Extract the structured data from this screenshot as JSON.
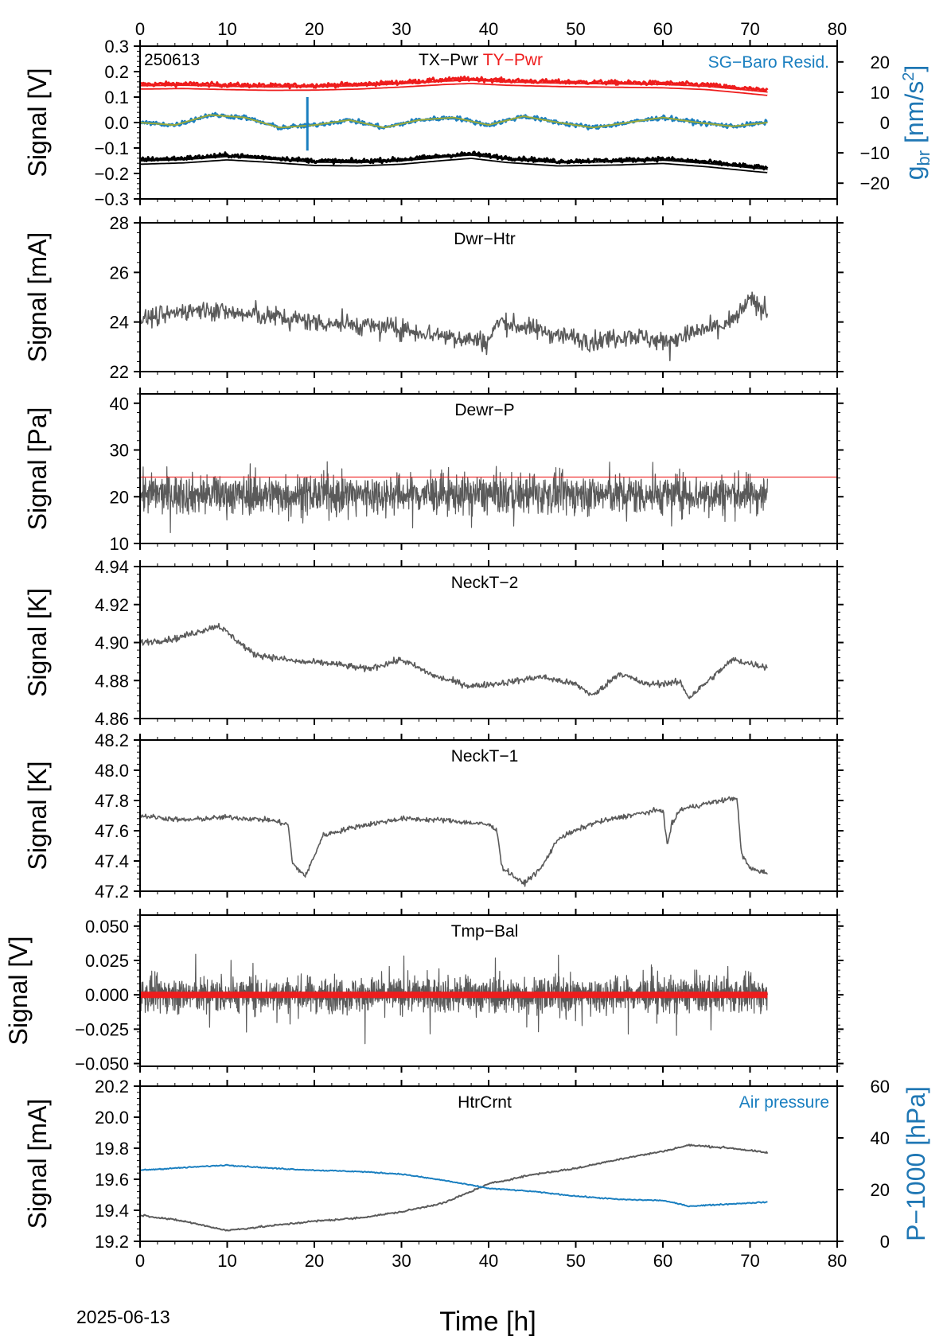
{
  "figure": {
    "date_label": "2025-06-13",
    "xlabel": "Time [h]",
    "x_ticks": [
      0,
      10,
      20,
      30,
      40,
      50,
      60,
      70,
      80
    ],
    "xlim": [
      0,
      80
    ]
  },
  "colors": {
    "trace": "#5a5a5a",
    "red": "#ee1c1c",
    "blue": "#1a7fc0",
    "green": "#9aaa3a",
    "black": "#000000"
  },
  "chart_data": [
    {
      "id": "p1",
      "type": "line",
      "title": "",
      "title_parts": [
        "TX−Pwr",
        "TY−Pwr"
      ],
      "corner_label": "250613",
      "right_annotation": "SG−Baro Resid.",
      "ylabel": "Signal [V]",
      "ylim": [
        -0.3,
        0.3
      ],
      "y_ticks": [
        0.3,
        0.2,
        0.1,
        0.0,
        -0.1,
        -0.2,
        -0.3
      ],
      "y_tick_labels": [
        "0.3",
        "0.2",
        "0.1",
        "0.0",
        "−0.1",
        "−0.2",
        "−0.3"
      ],
      "y2label": "g_br [nm/s²]",
      "y2label_parts": {
        "main": "g",
        "sub": "br",
        "rest": " [nm/s",
        "sup": "2",
        "close": "]"
      },
      "y2lim": [
        -25.2,
        25.2
      ],
      "y2_ticks": [
        20,
        10,
        0,
        -10,
        -20
      ],
      "y2_tick_labels": [
        "20",
        "10",
        "0",
        "−10",
        "−20"
      ],
      "series": [
        {
          "name": "TY−Pwr",
          "color": "red",
          "x": [
            0,
            5,
            10,
            15,
            20,
            25,
            30,
            35,
            38,
            42,
            48,
            55,
            60,
            65,
            70,
            72
          ],
          "y": [
            0.15,
            0.152,
            0.148,
            0.145,
            0.146,
            0.15,
            0.158,
            0.168,
            0.172,
            0.165,
            0.16,
            0.157,
            0.155,
            0.148,
            0.132,
            0.125
          ]
        },
        {
          "name": "TX−Pwr",
          "color": "black",
          "x": [
            0,
            5,
            10,
            15,
            20,
            25,
            30,
            35,
            38,
            42,
            48,
            55,
            60,
            65,
            70,
            72
          ],
          "y": [
            -0.145,
            -0.14,
            -0.128,
            -0.138,
            -0.15,
            -0.152,
            -0.145,
            -0.13,
            -0.122,
            -0.138,
            -0.152,
            -0.148,
            -0.142,
            -0.155,
            -0.172,
            -0.178
          ]
        },
        {
          "name": "SG−Baro Resid.",
          "color": "blue",
          "x": [
            0,
            4,
            8,
            12,
            16,
            20,
            24,
            28,
            32,
            36,
            40,
            44,
            48,
            52,
            56,
            60,
            64,
            68,
            72
          ],
          "y": [
            0.0,
            -0.01,
            0.03,
            0.02,
            -0.02,
            -0.01,
            0.01,
            -0.02,
            0.01,
            0.02,
            -0.01,
            0.025,
            0.0,
            -0.02,
            0.0,
            0.02,
            0.0,
            -0.015,
            0.0
          ]
        }
      ]
    },
    {
      "id": "p2",
      "type": "line",
      "title": "Dwr−Htr",
      "ylabel": "Signal [mA]",
      "ylim": [
        22,
        28
      ],
      "y_ticks": [
        28,
        26,
        24,
        22
      ],
      "y_tick_labels": [
        "28",
        "26",
        "24",
        "22"
      ],
      "series": [
        {
          "name": "",
          "color": "trace",
          "x": [
            0,
            4,
            8,
            12,
            16,
            20,
            24,
            28,
            32,
            36,
            40,
            41,
            44,
            48,
            52,
            56,
            60,
            64,
            68,
            70,
            72
          ],
          "y": [
            24.1,
            24.4,
            24.5,
            24.3,
            24.2,
            24.0,
            23.9,
            23.8,
            23.6,
            23.4,
            23.2,
            24.0,
            23.8,
            23.5,
            23.2,
            23.5,
            23.2,
            23.6,
            24.0,
            24.9,
            24.4
          ]
        }
      ]
    },
    {
      "id": "p3",
      "type": "line",
      "title": "Dewr−P",
      "ylabel": "Signal [Pa]",
      "ylim": [
        10,
        42
      ],
      "y_ticks": [
        40,
        30,
        20,
        10
      ],
      "y_tick_labels": [
        "40",
        "30",
        "20",
        "10"
      ],
      "threshold": 24.2,
      "series": [
        {
          "name": "",
          "color": "trace",
          "x": [
            0,
            72
          ],
          "y": [
            20.5,
            20.5
          ]
        }
      ]
    },
    {
      "id": "p4",
      "type": "line",
      "title": "NeckT−2",
      "ylabel": "Signal [K]",
      "ylim": [
        4.86,
        4.94
      ],
      "y_ticks": [
        4.94,
        4.92,
        4.9,
        4.88,
        4.86
      ],
      "y_tick_labels": [
        "4.94",
        "4.92",
        "4.90",
        "4.88",
        "4.86"
      ],
      "series": [
        {
          "name": "",
          "color": "trace",
          "x": [
            0,
            4,
            9,
            13,
            18,
            22,
            26,
            30,
            34,
            38,
            42,
            46,
            50,
            52,
            55,
            58,
            62,
            63,
            66,
            68,
            72
          ],
          "y": [
            4.9,
            4.902,
            4.909,
            4.894,
            4.89,
            4.889,
            4.886,
            4.891,
            4.882,
            4.877,
            4.879,
            4.882,
            4.878,
            4.872,
            4.884,
            4.878,
            4.879,
            4.871,
            4.883,
            4.891,
            4.887
          ]
        }
      ]
    },
    {
      "id": "p5",
      "type": "line",
      "title": "NeckT−1",
      "ylabel": "Signal [K]",
      "ylim": [
        47.2,
        48.2
      ],
      "y_ticks": [
        48.2,
        48.0,
        47.8,
        47.6,
        47.4,
        47.2
      ],
      "y_tick_labels": [
        "48.2",
        "48.0",
        "47.8",
        "47.6",
        "47.4",
        "47.2"
      ],
      "series": [
        {
          "name": "",
          "color": "trace",
          "x": [
            0,
            5,
            10,
            15,
            17,
            17.5,
            19,
            21,
            25,
            30,
            35,
            40,
            41,
            41.5,
            44,
            46,
            48,
            52,
            56,
            60,
            60.5,
            61,
            62,
            65,
            68.5,
            69,
            70,
            72
          ],
          "y": [
            47.7,
            47.67,
            47.69,
            47.67,
            47.64,
            47.38,
            47.3,
            47.57,
            47.63,
            47.68,
            47.67,
            47.64,
            47.6,
            47.36,
            47.25,
            47.35,
            47.55,
            47.65,
            47.7,
            47.74,
            47.5,
            47.64,
            47.74,
            47.78,
            47.82,
            47.45,
            47.35,
            47.32
          ]
        }
      ]
    },
    {
      "id": "p6",
      "type": "line",
      "title": "Tmp−Bal",
      "ylabel": "Signal [V]",
      "ylim": [
        -0.052,
        0.058
      ],
      "y_ticks": [
        0.05,
        0.025,
        0.0,
        -0.025,
        -0.05
      ],
      "y_tick_labels": [
        "0.050",
        "0.025",
        "0.000",
        "−0.025",
        "−0.050"
      ],
      "series": [
        {
          "name": "",
          "color": "trace",
          "x": [
            0,
            72
          ],
          "y": [
            0.0,
            0.0
          ]
        },
        {
          "name": "",
          "color": "red",
          "x": [
            0,
            72
          ],
          "y": [
            0.0,
            0.0
          ]
        }
      ]
    },
    {
      "id": "p7",
      "type": "line",
      "title": "HtrCrnt",
      "right_annotation": "Air pressure",
      "ylabel": "Signal [mA]",
      "ylim": [
        19.2,
        20.2
      ],
      "y_ticks": [
        20.2,
        20.0,
        19.8,
        19.6,
        19.4,
        19.2
      ],
      "y_tick_labels": [
        "20.2",
        "20.0",
        "19.8",
        "19.6",
        "19.4",
        "19.2"
      ],
      "y2label": "P−1000 [hPa]",
      "y2lim": [
        0,
        60
      ],
      "y2_ticks": [
        60,
        40,
        20,
        0
      ],
      "y2_tick_labels": [
        "60",
        "40",
        "20",
        "0"
      ],
      "series": [
        {
          "name": "",
          "color": "trace",
          "axis": "left",
          "x": [
            0,
            5,
            10,
            15,
            20,
            25,
            30,
            35,
            40,
            45,
            50,
            55,
            60,
            63,
            68,
            72
          ],
          "y": [
            19.37,
            19.33,
            19.27,
            19.3,
            19.33,
            19.35,
            19.39,
            19.45,
            19.57,
            19.63,
            19.67,
            19.73,
            19.78,
            19.82,
            19.8,
            19.77
          ]
        },
        {
          "name": "Air pressure",
          "color": "blue",
          "axis": "right",
          "x": [
            0,
            5,
            10,
            15,
            20,
            25,
            30,
            35,
            40,
            45,
            50,
            55,
            60,
            63,
            68,
            72
          ],
          "y": [
            27.5,
            28.5,
            29.5,
            28.3,
            27.5,
            27.0,
            26.0,
            23.5,
            20.5,
            19.3,
            17.5,
            16.2,
            15.8,
            13.6,
            14.5,
            15.2
          ]
        }
      ]
    }
  ]
}
